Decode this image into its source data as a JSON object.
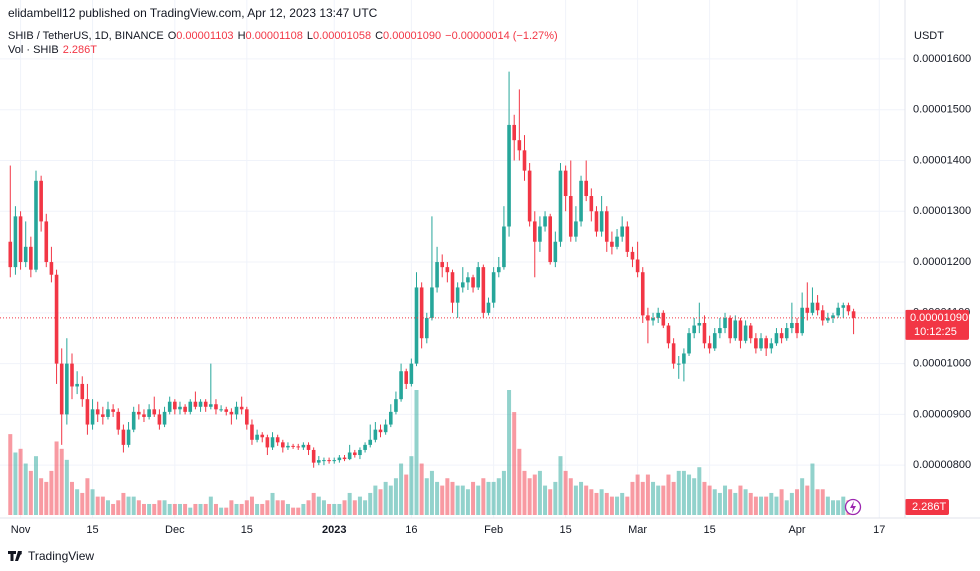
{
  "chart_data": {
    "type": "candlestick",
    "byline": "elidambell12 published on TradingView.com, Apr 12, 2023 13:47 UTC",
    "title": "SHIB / TetherUS, 1D, BINANCE",
    "legend_ohlc": [
      {
        "label": "O",
        "value": "0.00001103"
      },
      {
        "label": "H",
        "value": "0.00001108"
      },
      {
        "label": "L",
        "value": "0.00001058"
      },
      {
        "label": "C",
        "value": "0.00001090"
      }
    ],
    "change": "−0.00000014 (−1.27%)",
    "volume_title": "Vol · SHIB",
    "volume_label": "2.286T",
    "y_unit": "USDT",
    "countdown": "10:12:25",
    "brand": "TradingView",
    "up_color": "#26a69a",
    "down_color": "#f23645",
    "grid": true,
    "xlim": [
      "2022-10-28",
      "2023-04-22"
    ],
    "xticks": [
      {
        "value": "2022-11-01",
        "label": "Nov"
      },
      {
        "value": "2022-11-15",
        "label": "15"
      },
      {
        "value": "2022-12-01",
        "label": "Dec"
      },
      {
        "value": "2022-12-15",
        "label": "15"
      },
      {
        "value": "2023-01-01",
        "label": "2023"
      },
      {
        "value": "2023-01-16",
        "label": "16"
      },
      {
        "value": "2023-02-01",
        "label": "Feb"
      },
      {
        "value": "2023-02-15",
        "label": "15"
      },
      {
        "value": "2023-03-01",
        "label": "Mar"
      },
      {
        "value": "2023-03-15",
        "label": "15"
      },
      {
        "value": "2023-04-01",
        "label": "Apr"
      },
      {
        "value": "2023-04-17",
        "label": "17"
      }
    ],
    "ylim": [
      6.96e-06,
      1.716e-05
    ],
    "yticks": [
      {
        "value": 8e-06,
        "label": "0.00000800"
      },
      {
        "value": 9e-06,
        "label": "0.00000900"
      },
      {
        "value": 1e-05,
        "label": "0.00001000"
      },
      {
        "value": 1.1e-05,
        "label": "0.00001100"
      },
      {
        "value": 1.2e-05,
        "label": "0.00001200"
      },
      {
        "value": 1.3e-05,
        "label": "0.00001300"
      },
      {
        "value": 1.4e-05,
        "label": "0.00001400"
      },
      {
        "value": 1.5e-05,
        "label": "0.00001500"
      },
      {
        "value": 1.6e-05,
        "label": "0.00001600"
      }
    ],
    "x": [
      "2022-10-30",
      "2022-10-31",
      "2022-11-01",
      "2022-11-02",
      "2022-11-03",
      "2022-11-04",
      "2022-11-05",
      "2022-11-06",
      "2022-11-07",
      "2022-11-08",
      "2022-11-09",
      "2022-11-10",
      "2022-11-11",
      "2022-11-12",
      "2022-11-13",
      "2022-11-14",
      "2022-11-15",
      "2022-11-16",
      "2022-11-17",
      "2022-11-18",
      "2022-11-19",
      "2022-11-20",
      "2022-11-21",
      "2022-11-22",
      "2022-11-23",
      "2022-11-24",
      "2022-11-25",
      "2022-11-26",
      "2022-11-27",
      "2022-11-28",
      "2022-11-29",
      "2022-11-30",
      "2022-12-01",
      "2022-12-02",
      "2022-12-03",
      "2022-12-04",
      "2022-12-05",
      "2022-12-06",
      "2022-12-07",
      "2022-12-08",
      "2022-12-09",
      "2022-12-10",
      "2022-12-11",
      "2022-12-12",
      "2022-12-13",
      "2022-12-14",
      "2022-12-15",
      "2022-12-16",
      "2022-12-17",
      "2022-12-18",
      "2022-12-19",
      "2022-12-20",
      "2022-12-21",
      "2022-12-22",
      "2022-12-23",
      "2022-12-24",
      "2022-12-25",
      "2022-12-26",
      "2022-12-27",
      "2022-12-28",
      "2022-12-29",
      "2022-12-30",
      "2022-12-31",
      "2023-01-01",
      "2023-01-02",
      "2023-01-03",
      "2023-01-04",
      "2023-01-05",
      "2023-01-06",
      "2023-01-07",
      "2023-01-08",
      "2023-01-09",
      "2023-01-10",
      "2023-01-11",
      "2023-01-12",
      "2023-01-13",
      "2023-01-14",
      "2023-01-15",
      "2023-01-16",
      "2023-01-17",
      "2023-01-18",
      "2023-01-19",
      "2023-01-20",
      "2023-01-21",
      "2023-01-22",
      "2023-01-23",
      "2023-01-24",
      "2023-01-25",
      "2023-01-26",
      "2023-01-27",
      "2023-01-28",
      "2023-01-29",
      "2023-01-30",
      "2023-01-31",
      "2023-02-01",
      "2023-02-02",
      "2023-02-03",
      "2023-02-04",
      "2023-02-05",
      "2023-02-06",
      "2023-02-07",
      "2023-02-08",
      "2023-02-09",
      "2023-02-10",
      "2023-02-11",
      "2023-02-12",
      "2023-02-13",
      "2023-02-14",
      "2023-02-15",
      "2023-02-16",
      "2023-02-17",
      "2023-02-18",
      "2023-02-19",
      "2023-02-20",
      "2023-02-21",
      "2023-02-22",
      "2023-02-23",
      "2023-02-24",
      "2023-02-25",
      "2023-02-26",
      "2023-02-27",
      "2023-02-28",
      "2023-03-01",
      "2023-03-02",
      "2023-03-03",
      "2023-03-04",
      "2023-03-05",
      "2023-03-06",
      "2023-03-07",
      "2023-03-08",
      "2023-03-09",
      "2023-03-10",
      "2023-03-11",
      "2023-03-12",
      "2023-03-13",
      "2023-03-14",
      "2023-03-15",
      "2023-03-16",
      "2023-03-17",
      "2023-03-18",
      "2023-03-19",
      "2023-03-20",
      "2023-03-21",
      "2023-03-22",
      "2023-03-23",
      "2023-03-24",
      "2023-03-25",
      "2023-03-26",
      "2023-03-27",
      "2023-03-28",
      "2023-03-29",
      "2023-03-30",
      "2023-03-31",
      "2023-04-01",
      "2023-04-02",
      "2023-04-03",
      "2023-04-04",
      "2023-04-05",
      "2023-04-06",
      "2023-04-07",
      "2023-04-08",
      "2023-04-09",
      "2023-04-10",
      "2023-04-11",
      "2023-04-12"
    ],
    "open": [
      1.24e-05,
      1.19e-05,
      1.29e-05,
      1.2e-05,
      1.23e-05,
      1.185e-05,
      1.36e-05,
      1.28e-05,
      1.2e-05,
      1.175e-05,
      1e-05,
      9e-06,
      1e-05,
      9.55e-06,
      9.6e-06,
      9.3e-06,
      8.8e-06,
      9.1e-06,
      9e-06,
      8.95e-06,
      9.1e-06,
      9.05e-06,
      8.7e-06,
      8.4e-06,
      8.7e-06,
      9.05e-06,
      9e-06,
      8.95e-06,
      9.1e-06,
      9e-06,
      8.8e-06,
      9.05e-06,
      9.25e-06,
      9.1e-06,
      9.15e-06,
      9.05e-06,
      9.25e-06,
      9.15e-06,
      9.25e-06,
      9.15e-06,
      9.2e-06,
      9.1e-06,
      9.1e-06,
      9.05e-06,
      9e-06,
      9.15e-06,
      9.1e-06,
      8.8e-06,
      8.5e-06,
      8.6e-06,
      8.55e-06,
      8.35e-06,
      8.55e-06,
      8.45e-06,
      8.35e-06,
      8.38e-06,
      8.37e-06,
      8.35e-06,
      8.4e-06,
      8.3e-06,
      8.05e-06,
      8.1e-06,
      8.1e-06,
      8.08e-06,
      8.1e-06,
      8.15e-06,
      8.12e-06,
      8.25e-06,
      8.2e-06,
      8.3e-06,
      8.4e-06,
      8.5e-06,
      8.7e-06,
      8.65e-06,
      8.8e-06,
      9.05e-06,
      9.3e-06,
      9.85e-06,
      9.6e-06,
      1e-05,
      1.15e-05,
      1.05e-05,
      1.09e-05,
      1.15e-05,
      1.2e-05,
      1.19e-05,
      1.18e-05,
      1.12e-05,
      1.15e-05,
      1.16e-05,
      1.17e-05,
      1.15e-05,
      1.19e-05,
      1.1e-05,
      1.12e-05,
      1.18e-05,
      1.19e-05,
      1.27e-05,
      1.47e-05,
      1.44e-05,
      1.42e-05,
      1.38e-05,
      1.28e-05,
      1.24e-05,
      1.27e-05,
      1.29e-05,
      1.2e-05,
      1.24e-05,
      1.38e-05,
      1.33e-05,
      1.25e-05,
      1.28e-05,
      1.36e-05,
      1.33e-05,
      1.3e-05,
      1.26e-05,
      1.3e-05,
      1.24e-05,
      1.23e-05,
      1.25e-05,
      1.27e-05,
      1.22e-05,
      1.205e-05,
      1.18e-05,
      1.095e-05,
      1.085e-05,
      1.09e-05,
      1.1e-05,
      1.075e-05,
      1.04e-05,
      1e-05,
      1e-05,
      1.02e-05,
      1.06e-05,
      1.075e-05,
      1.08e-05,
      1.04e-05,
      1.03e-05,
      1.06e-05,
      1.07e-05,
      1.09e-05,
      1.05e-05,
      1.085e-05,
      1.045e-05,
      1.075e-05,
      1.05e-05,
      1.03e-05,
      1.05e-05,
      1.03e-05,
      1.04e-05,
      1.06e-05,
      1.05e-05,
      1.07e-05,
      1.08e-05,
      1.06e-05,
      1.11e-05,
      1.1e-05,
      1.12e-05,
      1.105e-05,
      1.085e-05,
      1.09e-05,
      1.095e-05,
      1.11e-05,
      1.115e-05,
      1.103e-05
    ],
    "high": [
      1.39e-05,
      1.31e-05,
      1.3e-05,
      1.28e-05,
      1.25e-05,
      1.38e-05,
      1.37e-05,
      1.295e-05,
      1.23e-05,
      1.185e-05,
      1.03e-05,
      1.05e-05,
      1.02e-05,
      9.85e-06,
      9.75e-06,
      9.6e-06,
      9.3e-06,
      9.25e-06,
      9.15e-06,
      9.25e-06,
      9.2e-06,
      9.12e-06,
      8.8e-06,
      8.85e-06,
      9.15e-06,
      9.2e-06,
      9.1e-06,
      9.2e-06,
      9.35e-06,
      9.1e-06,
      9.15e-06,
      9.35e-06,
      9.3e-06,
      9.25e-06,
      9.2e-06,
      9.3e-06,
      9.45e-06,
      9.3e-06,
      9.3e-06,
      1e-05,
      9.3e-06,
      9.18e-06,
      9.15e-06,
      9.12e-06,
      9.25e-06,
      9.35e-06,
      9.15e-06,
      8.9e-06,
      8.7e-06,
      8.65e-06,
      8.6e-06,
      8.65e-06,
      8.6e-06,
      8.5e-06,
      8.45e-06,
      8.42e-06,
      8.42e-06,
      8.45e-06,
      8.45e-06,
      8.35e-06,
      8.18e-06,
      8.15e-06,
      8.15e-06,
      8.15e-06,
      8.2e-06,
      8.2e-06,
      8.4e-06,
      8.3e-06,
      8.35e-06,
      8.45e-06,
      8.8e-06,
      8.85e-06,
      8.8e-06,
      8.9e-06,
      9.2e-06,
      9.45e-06,
      1e-05,
      9.9e-06,
      1.01e-05,
      1.18e-05,
      1.16e-05,
      1.1e-05,
      1.29e-05,
      1.23e-05,
      1.215e-05,
      1.2e-05,
      1.185e-05,
      1.16e-05,
      1.19e-05,
      1.18e-05,
      1.175e-05,
      1.2e-05,
      1.195e-05,
      1.13e-05,
      1.19e-05,
      1.21e-05,
      1.31e-05,
      1.575e-05,
      1.49e-05,
      1.54e-05,
      1.45e-05,
      1.395e-05,
      1.3e-05,
      1.29e-05,
      1.3e-05,
      1.295e-05,
      1.26e-05,
      1.395e-05,
      1.39e-05,
      1.4e-05,
      1.31e-05,
      1.37e-05,
      1.4e-05,
      1.345e-05,
      1.31e-05,
      1.33e-05,
      1.31e-05,
      1.26e-05,
      1.265e-05,
      1.29e-05,
      1.28e-05,
      1.23e-05,
      1.24e-05,
      1.19e-05,
      1.11e-05,
      1.1e-05,
      1.11e-05,
      1.105e-05,
      1.08e-05,
      1.05e-05,
      1.015e-05,
      1.03e-05,
      1.07e-05,
      1.09e-05,
      1.12e-05,
      1.095e-05,
      1.055e-05,
      1.07e-05,
      1.09e-05,
      1.1e-05,
      1.095e-05,
      1.095e-05,
      1.09e-05,
      1.085e-05,
      1.08e-05,
      1.06e-05,
      1.06e-05,
      1.055e-05,
      1.05e-05,
      1.07e-05,
      1.07e-05,
      1.08e-05,
      1.12e-05,
      1.09e-05,
      1.14e-05,
      1.16e-05,
      1.15e-05,
      1.135e-05,
      1.115e-05,
      1.1e-05,
      1.1e-05,
      1.12e-05,
      1.12e-05,
      1.12e-05,
      1.108e-05
    ],
    "low": [
      1.17e-05,
      1.175e-05,
      1.185e-05,
      1.19e-05,
      1.17e-05,
      1.18e-05,
      1.26e-05,
      1.19e-05,
      1.16e-05,
      9.6e-06,
      8.4e-06,
      8.8e-06,
      9.3e-06,
      9.4e-06,
      9.15e-06,
      8.6e-06,
      8.7e-06,
      8.85e-06,
      8.8e-06,
      8.9e-06,
      8.95e-06,
      8.6e-06,
      8.25e-06,
      8.35e-06,
      8.65e-06,
      8.9e-06,
      8.85e-06,
      8.9e-06,
      8.95e-06,
      8.7e-06,
      8.75e-06,
      9e-06,
      9e-06,
      9e-06,
      9e-06,
      9e-06,
      9.1e-06,
      9.05e-06,
      9.05e-06,
      9.1e-06,
      9e-06,
      9.05e-06,
      8.98e-06,
      8.8e-06,
      8.9e-06,
      9e-06,
      8.7e-06,
      8.4e-06,
      8.45e-06,
      8.45e-06,
      8.2e-06,
      8.3e-06,
      8.38e-06,
      8.25e-06,
      8.3e-06,
      8.32e-06,
      8.3e-06,
      8.3e-06,
      8.2e-06,
      7.95e-06,
      8e-06,
      8e-06,
      8.03e-06,
      8.03e-06,
      8.05e-06,
      8.08e-06,
      8.1e-06,
      8.15e-06,
      8.12e-06,
      8.25e-06,
      8.35e-06,
      8.45e-06,
      8.55e-06,
      8.6e-06,
      8.75e-06,
      9e-06,
      9.25e-06,
      9.5e-06,
      9.55e-06,
      9.95e-06,
      1.03e-05,
      1.04e-05,
      1.085e-05,
      1.14e-05,
      1.17e-05,
      1.16e-05,
      1.1e-05,
      1.09e-05,
      1.14e-05,
      1.145e-05,
      1.14e-05,
      1.145e-05,
      1.09e-05,
      1.095e-05,
      1.11e-05,
      1.17e-05,
      1.185e-05,
      1.25e-05,
      1.4e-05,
      1.4e-05,
      1.36e-05,
      1.27e-05,
      1.17e-05,
      1.22e-05,
      1.26e-05,
      1.195e-05,
      1.19e-05,
      1.23e-05,
      1.3e-05,
      1.24e-05,
      1.24e-05,
      1.27e-05,
      1.32e-05,
      1.28e-05,
      1.25e-05,
      1.25e-05,
      1.22e-05,
      1.215e-05,
      1.225e-05,
      1.24e-05,
      1.21e-05,
      1.19e-05,
      1.17e-05,
      1.08e-05,
      1.04e-05,
      1.075e-05,
      1.08e-05,
      1.07e-05,
      1.03e-05,
      9.9e-06,
      9.7e-06,
      9.65e-06,
      1.015e-05,
      1.05e-05,
      1.06e-05,
      1.03e-05,
      1.02e-05,
      1.025e-05,
      1.05e-05,
      1.06e-05,
      1.04e-05,
      1.045e-05,
      1.03e-05,
      1.04e-05,
      1.04e-05,
      1.02e-05,
      1.025e-05,
      1.015e-05,
      1.02e-05,
      1.035e-05,
      1.04e-05,
      1.045e-05,
      1.06e-05,
      1.05e-05,
      1.055e-05,
      1.085e-05,
      1.095e-05,
      1.095e-05,
      1.075e-05,
      1.08e-05,
      1.08e-05,
      1.09e-05,
      1.09e-05,
      1.095e-05,
      1.058e-05
    ],
    "close": [
      1.19e-05,
      1.29e-05,
      1.2e-05,
      1.23e-05,
      1.185e-05,
      1.36e-05,
      1.28e-05,
      1.2e-05,
      1.175e-05,
      1e-05,
      9e-06,
      1e-05,
      9.55e-06,
      9.6e-06,
      9.3e-06,
      8.8e-06,
      9.1e-06,
      9e-06,
      8.95e-06,
      9.1e-06,
      9.05e-06,
      8.7e-06,
      8.4e-06,
      8.7e-06,
      9.05e-06,
      9e-06,
      8.95e-06,
      9.1e-06,
      9e-06,
      8.8e-06,
      9.05e-06,
      9.25e-06,
      9.1e-06,
      9.15e-06,
      9.05e-06,
      9.25e-06,
      9.15e-06,
      9.25e-06,
      9.15e-06,
      9.2e-06,
      9.1e-06,
      9.1e-06,
      9.05e-06,
      9e-06,
      9.15e-06,
      9.1e-06,
      8.8e-06,
      8.5e-06,
      8.6e-06,
      8.55e-06,
      8.35e-06,
      8.55e-06,
      8.45e-06,
      8.35e-06,
      8.38e-06,
      8.37e-06,
      8.35e-06,
      8.4e-06,
      8.3e-06,
      8.05e-06,
      8.1e-06,
      8.1e-06,
      8.08e-06,
      8.1e-06,
      8.15e-06,
      8.12e-06,
      8.25e-06,
      8.2e-06,
      8.3e-06,
      8.4e-06,
      8.5e-06,
      8.7e-06,
      8.65e-06,
      8.8e-06,
      9.05e-06,
      9.3e-06,
      9.85e-06,
      9.6e-06,
      1e-05,
      1.15e-05,
      1.05e-05,
      1.09e-05,
      1.15e-05,
      1.2e-05,
      1.19e-05,
      1.18e-05,
      1.12e-05,
      1.15e-05,
      1.16e-05,
      1.17e-05,
      1.15e-05,
      1.19e-05,
      1.1e-05,
      1.12e-05,
      1.18e-05,
      1.19e-05,
      1.27e-05,
      1.47e-05,
      1.44e-05,
      1.42e-05,
      1.38e-05,
      1.28e-05,
      1.24e-05,
      1.27e-05,
      1.29e-05,
      1.2e-05,
      1.24e-05,
      1.38e-05,
      1.33e-05,
      1.25e-05,
      1.28e-05,
      1.36e-05,
      1.33e-05,
      1.3e-05,
      1.26e-05,
      1.3e-05,
      1.24e-05,
      1.23e-05,
      1.25e-05,
      1.27e-05,
      1.22e-05,
      1.205e-05,
      1.18e-05,
      1.095e-05,
      1.085e-05,
      1.09e-05,
      1.1e-05,
      1.075e-05,
      1.04e-05,
      1e-05,
      1e-05,
      1.02e-05,
      1.06e-05,
      1.075e-05,
      1.08e-05,
      1.04e-05,
      1.03e-05,
      1.06e-05,
      1.07e-05,
      1.09e-05,
      1.05e-05,
      1.085e-05,
      1.045e-05,
      1.075e-05,
      1.05e-05,
      1.03e-05,
      1.05e-05,
      1.03e-05,
      1.04e-05,
      1.06e-05,
      1.05e-05,
      1.07e-05,
      1.08e-05,
      1.06e-05,
      1.11e-05,
      1.1e-05,
      1.12e-05,
      1.105e-05,
      1.085e-05,
      1.09e-05,
      1.095e-05,
      1.11e-05,
      1.115e-05,
      1.103e-05,
      1.09e-05
    ],
    "volume": [
      22,
      17,
      18,
      14,
      12,
      16,
      10,
      9,
      12,
      20,
      18,
      15,
      9,
      7,
      6,
      10,
      7,
      5,
      5,
      4,
      3,
      4,
      6,
      5,
      5,
      4,
      3,
      3,
      3,
      4,
      4,
      3,
      3,
      3,
      3,
      2,
      3,
      3,
      3,
      5,
      3,
      2,
      2,
      4,
      3,
      3,
      4,
      5,
      3,
      3,
      4,
      6,
      4,
      4,
      3,
      2,
      2,
      3,
      4,
      6,
      5,
      4,
      3,
      3,
      3,
      4,
      6,
      4,
      5,
      4,
      6,
      8,
      7,
      9,
      8,
      10,
      14,
      11,
      16,
      34,
      14,
      10,
      12,
      9,
      8,
      10,
      9,
      8,
      8,
      7,
      9,
      8,
      10,
      9,
      9,
      10,
      12,
      34,
      28,
      18,
      12,
      10,
      11,
      12,
      8,
      7,
      9,
      16,
      12,
      10,
      8,
      9,
      8,
      7,
      6,
      7,
      6,
      5,
      5,
      6,
      5,
      9,
      11,
      9,
      11,
      9,
      8,
      8,
      11,
      9,
      12,
      12,
      11,
      10,
      13,
      9,
      8,
      7,
      6,
      8,
      7,
      6,
      8,
      7,
      6,
      5,
      5,
      5,
      6,
      5,
      7,
      4,
      6,
      7,
      10,
      8,
      14,
      7,
      7,
      5,
      4,
      4,
      5,
      4,
      2.286
    ]
  }
}
